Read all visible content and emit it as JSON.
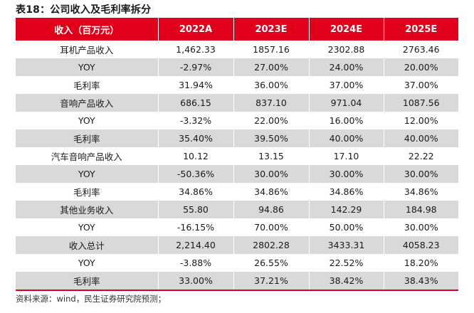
{
  "title": "表18：公司收入及毛利率拆分",
  "table": {
    "headers": [
      "收入（百万元）",
      "2022A",
      "2023E",
      "2024E",
      "2025E"
    ],
    "rows": [
      [
        "耳机产品收入",
        "1,462.33",
        "1857.16",
        "2302.88",
        "2763.46"
      ],
      [
        "YOY",
        "-2.97%",
        "27.00%",
        "24.00%",
        "20.00%"
      ],
      [
        "毛利率",
        "31.94%",
        "36.00%",
        "37.00%",
        "37.00%"
      ],
      [
        "音响产品收入",
        "686.15",
        "837.10",
        "971.04",
        "1087.56"
      ],
      [
        "YOY",
        "-3.32%",
        "22.00%",
        "16.00%",
        "12.00%"
      ],
      [
        "毛利率",
        "35.40%",
        "39.50%",
        "40.00%",
        "40.00%"
      ],
      [
        "汽车音响产品收入",
        "10.12",
        "13.15",
        "17.10",
        "22.22"
      ],
      [
        "YOY",
        "-50.36%",
        "30.00%",
        "30.00%",
        "30.00%"
      ],
      [
        "毛利率",
        "34.86%",
        "34.86%",
        "34.86%",
        "34.86%"
      ],
      [
        "其他业务收入",
        "55.80",
        "94.86",
        "142.29",
        "184.98"
      ],
      [
        "YOY",
        "-16.15%",
        "70.00%",
        "50.00%",
        "30.00%"
      ],
      [
        "收入总计",
        "2,214.40",
        "2802.28",
        "3433.31",
        "4058.23"
      ],
      [
        "YOY",
        "-3.88%",
        "26.55%",
        "22.52%",
        "18.20%"
      ],
      [
        "毛利率",
        "33.00%",
        "37.21%",
        "38.42%",
        "38.43%"
      ]
    ]
  },
  "source": "资料来源：wind，民生证券研究院预测；",
  "colors": {
    "header_bg": "#e0001b",
    "stripe": "#d9d9d9"
  }
}
